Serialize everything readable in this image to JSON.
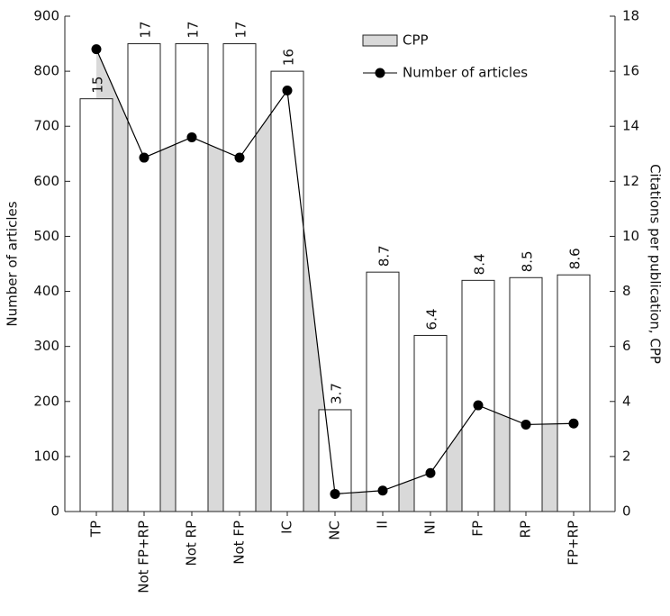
{
  "chart_data": {
    "type": "bar",
    "categories": [
      "TP",
      "Not FP+RP",
      "Not RP",
      "Not FP",
      "IC",
      "NC",
      "II",
      "NI",
      "FP",
      "RP",
      "FP+RP"
    ],
    "series": [
      {
        "name": "CPP",
        "type": "bar",
        "axis": "y2",
        "color": "#ffffff",
        "legend_color": "#d9d9d9",
        "values": [
          15,
          17,
          17,
          17,
          16,
          3.7,
          8.7,
          6.4,
          8.4,
          8.5,
          8.6
        ]
      },
      {
        "name": "Number of articles",
        "type": "line",
        "axis": "y",
        "color": "#000000",
        "area_color": "#d9d9d9",
        "values": [
          840,
          643,
          680,
          643,
          765,
          32,
          38,
          70,
          193,
          158,
          160
        ]
      }
    ],
    "y_label": "Number of articles",
    "y2_label": "Citations per publication, CPP",
    "ylim": [
      0,
      900
    ],
    "yticks": [
      0,
      100,
      200,
      300,
      400,
      500,
      600,
      700,
      800,
      900
    ],
    "y2lim": [
      0,
      18
    ],
    "y2ticks": [
      0,
      2,
      4,
      6,
      8,
      10,
      12,
      14,
      16,
      18
    ],
    "legend": "top"
  }
}
